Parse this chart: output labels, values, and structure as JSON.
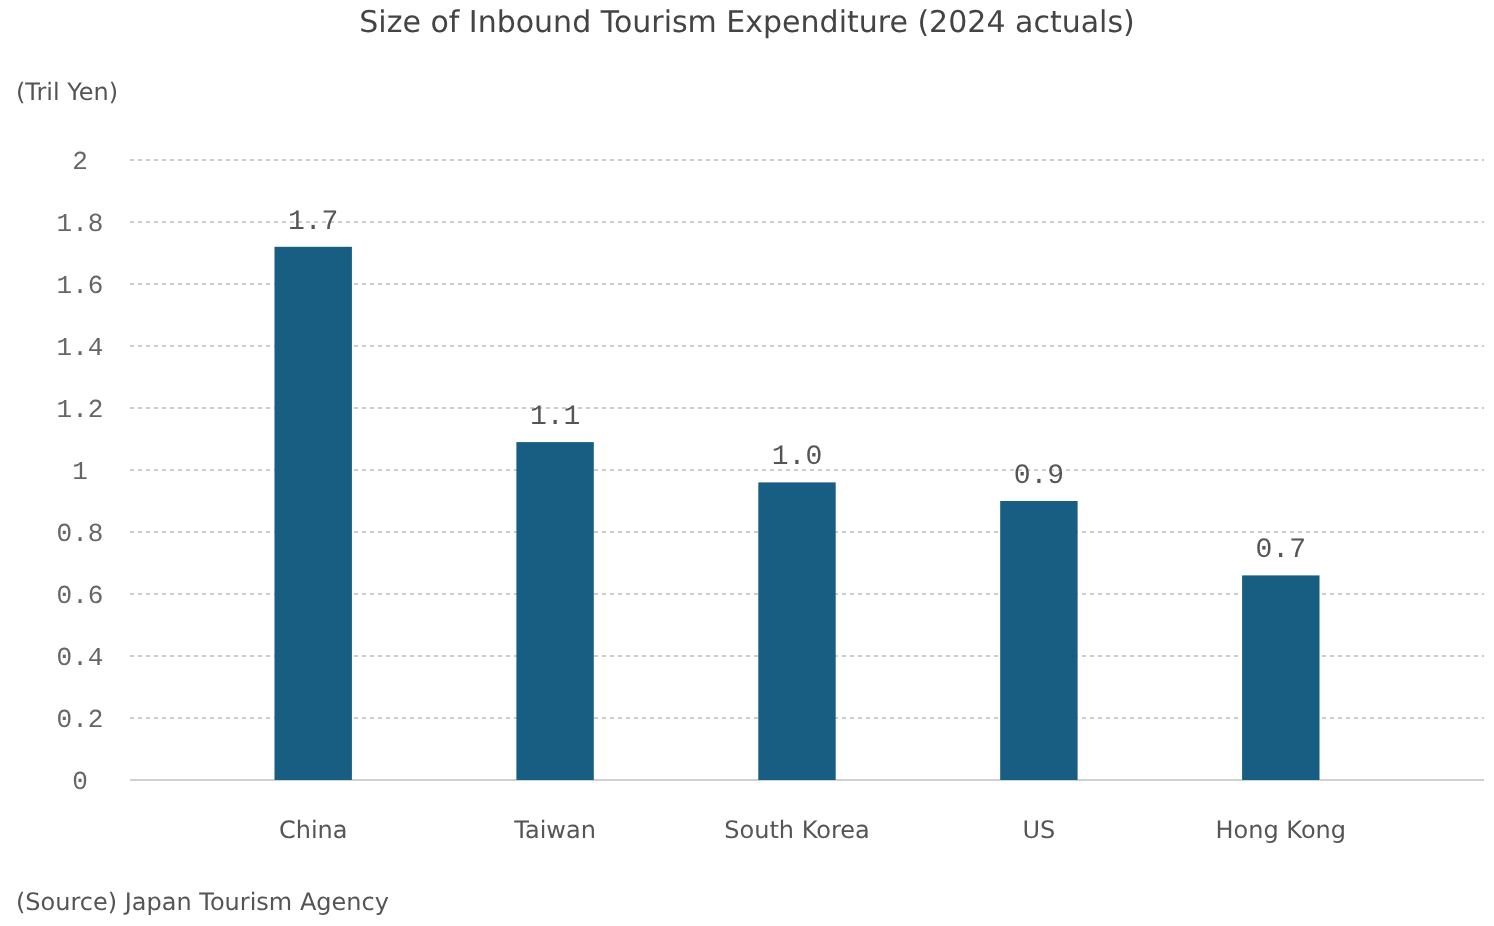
{
  "chart_data": {
    "type": "bar",
    "title": "Size of Inbound Tourism Expenditure (2024 actuals)",
    "ylabel": "(Tril Yen)",
    "categories": [
      "China",
      "Taiwan",
      "South Korea",
      "US",
      "Hong Kong"
    ],
    "values": [
      1.72,
      1.09,
      0.96,
      0.9,
      0.66
    ],
    "value_labels": [
      "1.7",
      "1.1",
      "1.0",
      "0.9",
      "0.7"
    ],
    "color": "#175e82",
    "ylim": [
      0,
      2
    ],
    "yticks": [
      {
        "value": 0,
        "label": "0"
      },
      {
        "value": 0.2,
        "label": "0.2"
      },
      {
        "value": 0.4,
        "label": "0.4"
      },
      {
        "value": 0.6,
        "label": "0.6"
      },
      {
        "value": 0.8,
        "label": "0.8"
      },
      {
        "value": 1,
        "label": "1"
      },
      {
        "value": 1.2,
        "label": "1.2"
      },
      {
        "value": 1.4,
        "label": "1.4"
      },
      {
        "value": 1.6,
        "label": "1.6"
      },
      {
        "value": 1.8,
        "label": "1.8"
      },
      {
        "value": 2,
        "label": "2"
      }
    ],
    "grid": "y",
    "annotations": [
      "(Source) Japan Tourism Agency"
    ]
  }
}
